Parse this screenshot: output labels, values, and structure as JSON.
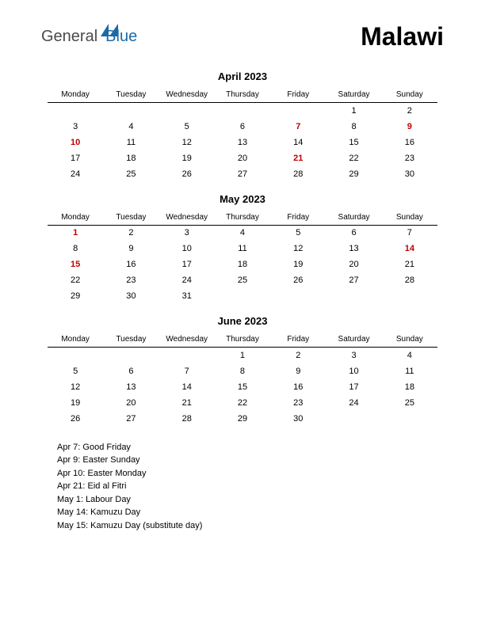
{
  "page": {
    "logo_general": "General",
    "logo_blue": "Blue",
    "title": "Malawi",
    "background_color": "#ffffff",
    "text_color": "#000000",
    "holiday_color": "#c00000",
    "logo_blue_color": "#1a6aa8",
    "logo_gray_color": "#4a4a4a"
  },
  "weekdays": [
    "Monday",
    "Tuesday",
    "Wednesday",
    "Thursday",
    "Friday",
    "Saturday",
    "Sunday"
  ],
  "months": [
    {
      "title": "April 2023",
      "weeks": [
        [
          {
            "d": ""
          },
          {
            "d": ""
          },
          {
            "d": ""
          },
          {
            "d": ""
          },
          {
            "d": ""
          },
          {
            "d": "1"
          },
          {
            "d": "2"
          }
        ],
        [
          {
            "d": "3"
          },
          {
            "d": "4"
          },
          {
            "d": "5"
          },
          {
            "d": "6"
          },
          {
            "d": "7",
            "h": true
          },
          {
            "d": "8"
          },
          {
            "d": "9",
            "h": true
          }
        ],
        [
          {
            "d": "10",
            "h": true
          },
          {
            "d": "11"
          },
          {
            "d": "12"
          },
          {
            "d": "13"
          },
          {
            "d": "14"
          },
          {
            "d": "15"
          },
          {
            "d": "16"
          }
        ],
        [
          {
            "d": "17"
          },
          {
            "d": "18"
          },
          {
            "d": "19"
          },
          {
            "d": "20"
          },
          {
            "d": "21",
            "h": true
          },
          {
            "d": "22"
          },
          {
            "d": "23"
          }
        ],
        [
          {
            "d": "24"
          },
          {
            "d": "25"
          },
          {
            "d": "26"
          },
          {
            "d": "27"
          },
          {
            "d": "28"
          },
          {
            "d": "29"
          },
          {
            "d": "30"
          }
        ]
      ]
    },
    {
      "title": "May 2023",
      "weeks": [
        [
          {
            "d": "1",
            "h": true
          },
          {
            "d": "2"
          },
          {
            "d": "3"
          },
          {
            "d": "4"
          },
          {
            "d": "5"
          },
          {
            "d": "6"
          },
          {
            "d": "7"
          }
        ],
        [
          {
            "d": "8"
          },
          {
            "d": "9"
          },
          {
            "d": "10"
          },
          {
            "d": "11"
          },
          {
            "d": "12"
          },
          {
            "d": "13"
          },
          {
            "d": "14",
            "h": true
          }
        ],
        [
          {
            "d": "15",
            "h": true
          },
          {
            "d": "16"
          },
          {
            "d": "17"
          },
          {
            "d": "18"
          },
          {
            "d": "19"
          },
          {
            "d": "20"
          },
          {
            "d": "21"
          }
        ],
        [
          {
            "d": "22"
          },
          {
            "d": "23"
          },
          {
            "d": "24"
          },
          {
            "d": "25"
          },
          {
            "d": "26"
          },
          {
            "d": "27"
          },
          {
            "d": "28"
          }
        ],
        [
          {
            "d": "29"
          },
          {
            "d": "30"
          },
          {
            "d": "31"
          },
          {
            "d": ""
          },
          {
            "d": ""
          },
          {
            "d": ""
          },
          {
            "d": ""
          }
        ]
      ]
    },
    {
      "title": "June 2023",
      "weeks": [
        [
          {
            "d": ""
          },
          {
            "d": ""
          },
          {
            "d": ""
          },
          {
            "d": "1"
          },
          {
            "d": "2"
          },
          {
            "d": "3"
          },
          {
            "d": "4"
          }
        ],
        [
          {
            "d": "5"
          },
          {
            "d": "6"
          },
          {
            "d": "7"
          },
          {
            "d": "8"
          },
          {
            "d": "9"
          },
          {
            "d": "10"
          },
          {
            "d": "11"
          }
        ],
        [
          {
            "d": "12"
          },
          {
            "d": "13"
          },
          {
            "d": "14"
          },
          {
            "d": "15"
          },
          {
            "d": "16"
          },
          {
            "d": "17"
          },
          {
            "d": "18"
          }
        ],
        [
          {
            "d": "19"
          },
          {
            "d": "20"
          },
          {
            "d": "21"
          },
          {
            "d": "22"
          },
          {
            "d": "23"
          },
          {
            "d": "24"
          },
          {
            "d": "25"
          }
        ],
        [
          {
            "d": "26"
          },
          {
            "d": "27"
          },
          {
            "d": "28"
          },
          {
            "d": "29"
          },
          {
            "d": "30"
          },
          {
            "d": ""
          },
          {
            "d": ""
          }
        ]
      ]
    }
  ],
  "holidays": [
    "Apr 7: Good Friday",
    "Apr 9: Easter Sunday",
    "Apr 10: Easter Monday",
    "Apr 21: Eid al Fitri",
    "May 1: Labour Day",
    "May 14: Kamuzu Day",
    "May 15: Kamuzu Day (substitute day)"
  ]
}
